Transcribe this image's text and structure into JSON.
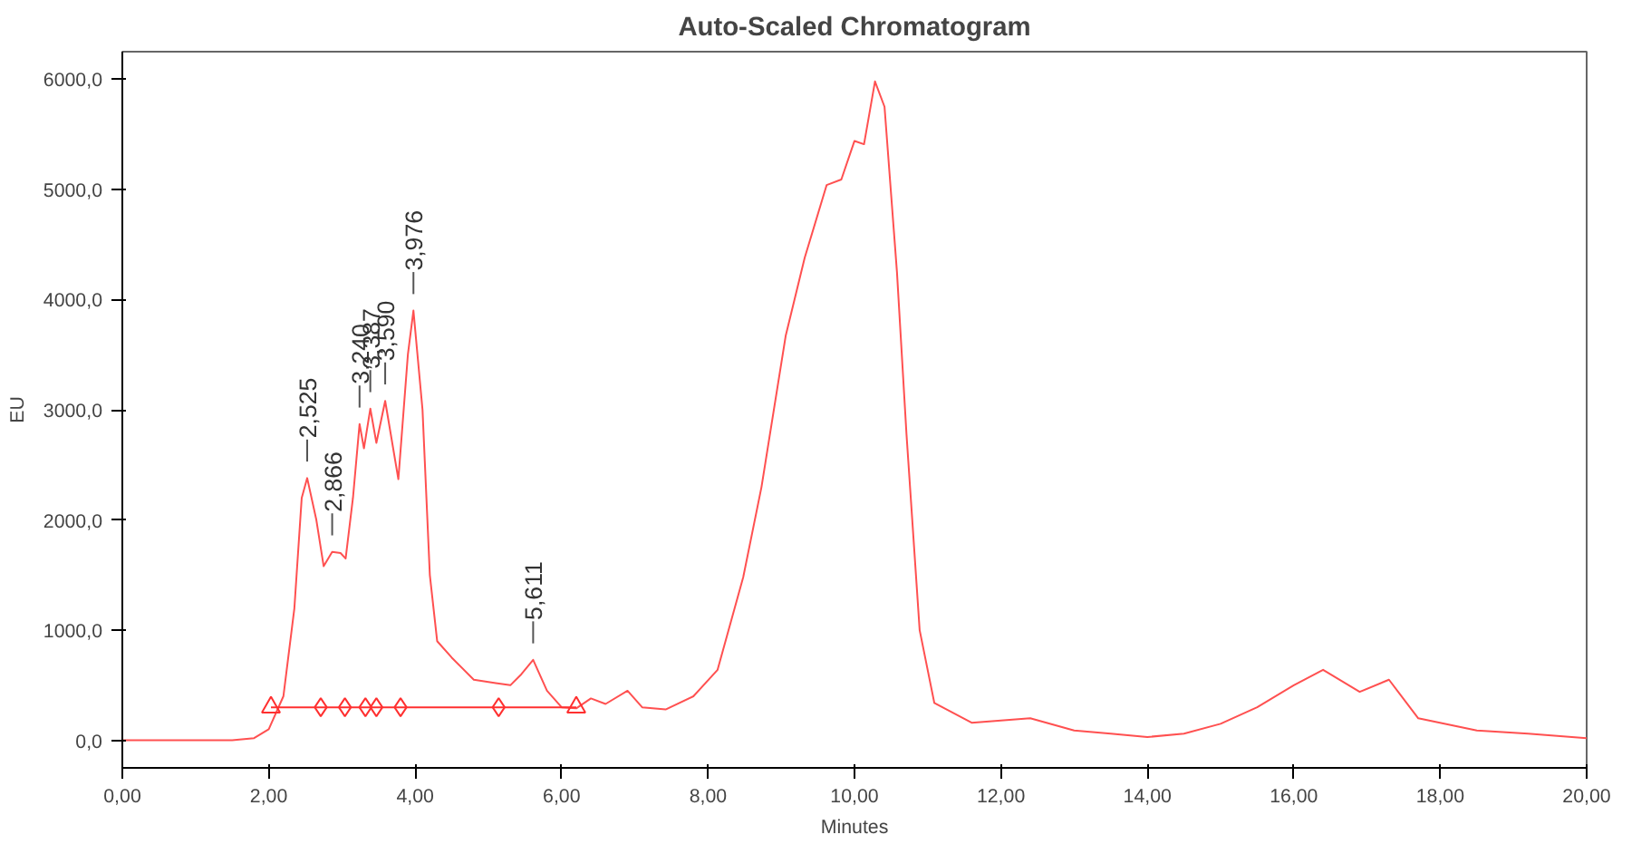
{
  "chart_data": {
    "type": "line",
    "title": "Auto-Scaled Chromatogram",
    "xlabel": "Minutes",
    "ylabel": "EU",
    "xlim": [
      0,
      20
    ],
    "ylim": [
      -250,
      6250
    ],
    "xticks": [
      {
        "value": 0,
        "label": "0,00"
      },
      {
        "value": 2,
        "label": "2,00"
      },
      {
        "value": 4,
        "label": "4,00"
      },
      {
        "value": 6,
        "label": "6,00"
      },
      {
        "value": 8,
        "label": "8,00"
      },
      {
        "value": 10,
        "label": "10,00"
      },
      {
        "value": 12,
        "label": "12,00"
      },
      {
        "value": 14,
        "label": "14,00"
      },
      {
        "value": 16,
        "label": "16,00"
      },
      {
        "value": 18,
        "label": "18,00"
      },
      {
        "value": 20,
        "label": "20,00"
      }
    ],
    "yticks": [
      {
        "value": 0,
        "label": "0,0"
      },
      {
        "value": 1000,
        "label": "1000,0"
      },
      {
        "value": 2000,
        "label": "2000,0"
      },
      {
        "value": 3000,
        "label": "3000,0"
      },
      {
        "value": 4000,
        "label": "4000,0"
      },
      {
        "value": 5000,
        "label": "5000,0"
      },
      {
        "value": 6000,
        "label": "6000,0"
      }
    ],
    "grid": false,
    "series": [
      {
        "color": "#ff5050",
        "marker": "none",
        "x": [
          0,
          1.5,
          1.8,
          2.0,
          2.2,
          2.35,
          2.45,
          2.525,
          2.65,
          2.75,
          2.866,
          2.98,
          3.05,
          3.15,
          3.24,
          3.3,
          3.387,
          3.47,
          3.59,
          3.77,
          3.9,
          3.976,
          4.1,
          4.2,
          4.3,
          4.5,
          4.8,
          5.1,
          5.3,
          5.45,
          5.611,
          5.8,
          6.0,
          6.2,
          6.4,
          6.6,
          6.9,
          7.1,
          7.42,
          7.8,
          8.13,
          8.48,
          8.73,
          9.06,
          9.32,
          9.62,
          9.82,
          10.0,
          10.13,
          10.28,
          10.41,
          10.58,
          10.71,
          10.89,
          11.09,
          11.6,
          12.4,
          13.0,
          13.5,
          14.0,
          14.5,
          15.0,
          15.5,
          16.0,
          16.4,
          16.9,
          17.3,
          17.7,
          18.5,
          19.2,
          20.0
        ],
        "values": [
          0,
          0,
          20,
          100,
          400,
          1200,
          2200,
          2380,
          2000,
          1580,
          1710,
          1700,
          1650,
          2200,
          2870,
          2650,
          3010,
          2700,
          3080,
          2370,
          3500,
          3900,
          3000,
          1500,
          900,
          750,
          550,
          520,
          500,
          600,
          730,
          450,
          300,
          290,
          380,
          330,
          450,
          300,
          280,
          400,
          640,
          1480,
          2300,
          3670,
          4380,
          5040,
          5090,
          5440,
          5410,
          5980,
          5750,
          4250,
          2780,
          1000,
          340,
          160,
          200,
          90,
          60,
          30,
          60,
          150,
          300,
          500,
          640,
          440,
          550,
          200,
          90,
          60,
          20
        ]
      },
      {
        "type": "line",
        "color": "#ff3030",
        "marker": "triangle",
        "x": [
          2.03,
          6.2
        ],
        "values": [
          300,
          300
        ]
      },
      {
        "type": "scatter",
        "color": "#ff3030",
        "marker": "diamond",
        "x": [
          2.71,
          3.04,
          3.32,
          3.47,
          3.8,
          5.14
        ],
        "values": [
          300,
          300,
          300,
          300,
          300,
          300
        ]
      }
    ],
    "annotations": [
      {
        "text": "2,525",
        "x": 2.525,
        "y": 2380
      },
      {
        "text": "2,866",
        "x": 2.866,
        "y": 1710
      },
      {
        "text": "3,240",
        "x": 3.24,
        "y": 2870
      },
      {
        "text": "3,387",
        "x": 3.387,
        "y": 3010
      },
      {
        "text": "3,590",
        "x": 3.59,
        "y": 3080
      },
      {
        "text": "3,976",
        "x": 3.976,
        "y": 3900
      },
      {
        "text": "5,611",
        "x": 5.611,
        "y": 730
      }
    ]
  }
}
